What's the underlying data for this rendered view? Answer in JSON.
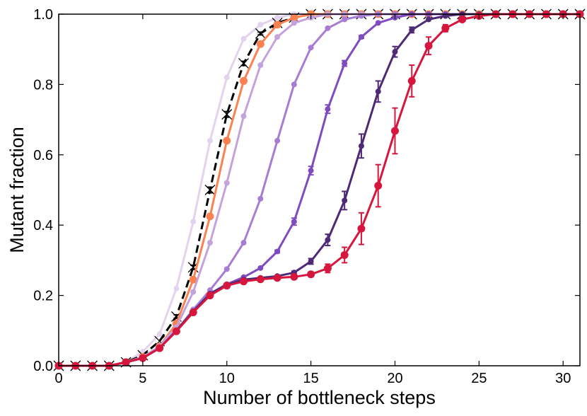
{
  "chart_data": {
    "type": "line",
    "title": "",
    "xlabel": "Number of bottleneck steps",
    "ylabel": "Mutant fraction",
    "xlim": [
      0,
      31
    ],
    "ylim": [
      0,
      1.0
    ],
    "xticks": [
      "0",
      "5",
      "10",
      "15",
      "20",
      "25",
      "30"
    ],
    "yticks": [
      "0.0",
      "0.2",
      "0.4",
      "0.6",
      "0.8",
      "1.0"
    ],
    "grid": false,
    "x": [
      0,
      1,
      2,
      3,
      4,
      5,
      6,
      7,
      8,
      9,
      10,
      11,
      12,
      13,
      14,
      15,
      16,
      17,
      18,
      19,
      20,
      21,
      22,
      23,
      24,
      25,
      26,
      27,
      28,
      29,
      30,
      31
    ],
    "series": [
      {
        "color": "#e3d3ee",
        "marker": "dot-small",
        "line": "solid",
        "values": [
          0,
          0,
          0,
          0,
          0.01,
          0.04,
          0.09,
          0.22,
          0.41,
          0.64,
          0.82,
          0.93,
          0.97,
          0.99,
          1.0,
          1.0,
          1.0,
          1.0,
          1.0,
          1.0,
          1.0,
          1.0,
          1.0,
          1.0,
          1.0,
          1.0,
          1.0,
          1.0,
          1.0,
          1.0,
          1.0,
          1.0
        ],
        "errors": []
      },
      {
        "color": "#000000",
        "marker": "x",
        "line": "dashed",
        "values": [
          0,
          0,
          0,
          0,
          0.01,
          0.03,
          0.07,
          0.14,
          0.28,
          0.5,
          0.715,
          0.86,
          0.945,
          0.975,
          0.99,
          1.0,
          1.0,
          1.0,
          1.0,
          1.0,
          1.0,
          1.0,
          1.0,
          1.0,
          1.0,
          1.0,
          1.0,
          1.0,
          1.0,
          1.0,
          1.0,
          1.0
        ],
        "errors": [
          0,
          0,
          0,
          0,
          0,
          0,
          0,
          0.005,
          0.006,
          0.008,
          0.008,
          0.006,
          0.004,
          0.002,
          0,
          0,
          0,
          0,
          0,
          0,
          0,
          0,
          0,
          0,
          0,
          0,
          0,
          0,
          0,
          0,
          0,
          0
        ]
      },
      {
        "color": "#fb8151",
        "marker": "dot-large",
        "line": "solid",
        "values": [
          0,
          0,
          0,
          0,
          0.01,
          0.025,
          0.055,
          0.12,
          0.245,
          0.425,
          0.64,
          0.81,
          0.915,
          0.97,
          0.99,
          1.0,
          1.0,
          1.0,
          1.0,
          1.0,
          1.0,
          1.0,
          1.0,
          1.0,
          1.0,
          1.0,
          1.0,
          1.0,
          1.0,
          1.0,
          1.0,
          1.0
        ],
        "errors": []
      },
      {
        "color": "#c4a3dc",
        "marker": "dot-small",
        "line": "solid",
        "values": [
          0,
          0,
          0,
          0,
          0.01,
          0.025,
          0.055,
          0.11,
          0.21,
          0.35,
          0.52,
          0.71,
          0.855,
          0.935,
          0.975,
          0.99,
          1.0,
          1.0,
          1.0,
          1.0,
          1.0,
          1.0,
          1.0,
          1.0,
          1.0,
          1.0,
          1.0,
          1.0,
          1.0,
          1.0,
          1.0,
          1.0
        ],
        "errors": []
      },
      {
        "color": "#a87cd4",
        "marker": "dot-small",
        "line": "solid",
        "values": [
          0,
          0,
          0,
          0,
          0.01,
          0.022,
          0.05,
          0.1,
          0.16,
          0.215,
          0.275,
          0.35,
          0.475,
          0.64,
          0.8,
          0.905,
          0.96,
          0.985,
          0.995,
          1.0,
          1.0,
          1.0,
          1.0,
          1.0,
          1.0,
          1.0,
          1.0,
          1.0,
          1.0,
          1.0,
          1.0,
          1.0
        ],
        "errors": []
      },
      {
        "color": "#7f4bc0",
        "marker": "dot-small",
        "line": "solid",
        "values": [
          0,
          0,
          0,
          0,
          0.01,
          0.022,
          0.05,
          0.1,
          0.155,
          0.205,
          0.232,
          0.252,
          0.278,
          0.325,
          0.41,
          0.555,
          0.73,
          0.86,
          0.935,
          0.975,
          0.99,
          1.0,
          1.0,
          1.0,
          1.0,
          1.0,
          1.0,
          1.0,
          1.0,
          1.0,
          1.0,
          1.0
        ],
        "errors": [
          0,
          0,
          0,
          0,
          0,
          0,
          0,
          0,
          0,
          0,
          0,
          0,
          0,
          0.004,
          0.01,
          0.012,
          0.012,
          0.008,
          0.004,
          0,
          0,
          0,
          0,
          0,
          0,
          0,
          0,
          0,
          0,
          0,
          0,
          0
        ]
      },
      {
        "color": "#4e2a76",
        "marker": "dot-small",
        "line": "solid",
        "values": [
          0,
          0,
          0,
          0,
          0.01,
          0.022,
          0.05,
          0.1,
          0.155,
          0.205,
          0.23,
          0.245,
          0.25,
          0.255,
          0.265,
          0.297,
          0.358,
          0.47,
          0.625,
          0.78,
          0.893,
          0.955,
          0.985,
          0.995,
          1.0,
          1.0,
          1.0,
          1.0,
          1.0,
          1.0,
          1.0,
          1.0
        ],
        "errors": [
          0,
          0,
          0,
          0,
          0,
          0,
          0,
          0,
          0,
          0,
          0,
          0,
          0,
          0,
          0.004,
          0.008,
          0.016,
          0.026,
          0.034,
          0.03,
          0.015,
          0.008,
          0,
          0,
          0,
          0,
          0,
          0,
          0,
          0,
          0,
          0
        ]
      },
      {
        "color": "#d7163e",
        "marker": "dot-large",
        "line": "solid",
        "values": [
          0,
          0,
          0,
          0,
          0.01,
          0.022,
          0.05,
          0.098,
          0.152,
          0.2,
          0.228,
          0.24,
          0.246,
          0.25,
          0.253,
          0.26,
          0.277,
          0.315,
          0.39,
          0.512,
          0.668,
          0.81,
          0.91,
          0.96,
          0.985,
          0.995,
          1.0,
          1.0,
          1.0,
          1.0,
          1.0,
          1.0
        ],
        "errors": [
          0,
          0,
          0,
          0,
          0,
          0,
          0,
          0,
          0,
          0,
          0,
          0,
          0,
          0,
          0,
          0.006,
          0.012,
          0.022,
          0.045,
          0.06,
          0.065,
          0.045,
          0.025,
          0.01,
          0,
          0,
          0,
          0,
          0,
          0,
          0,
          0
        ]
      }
    ]
  }
}
